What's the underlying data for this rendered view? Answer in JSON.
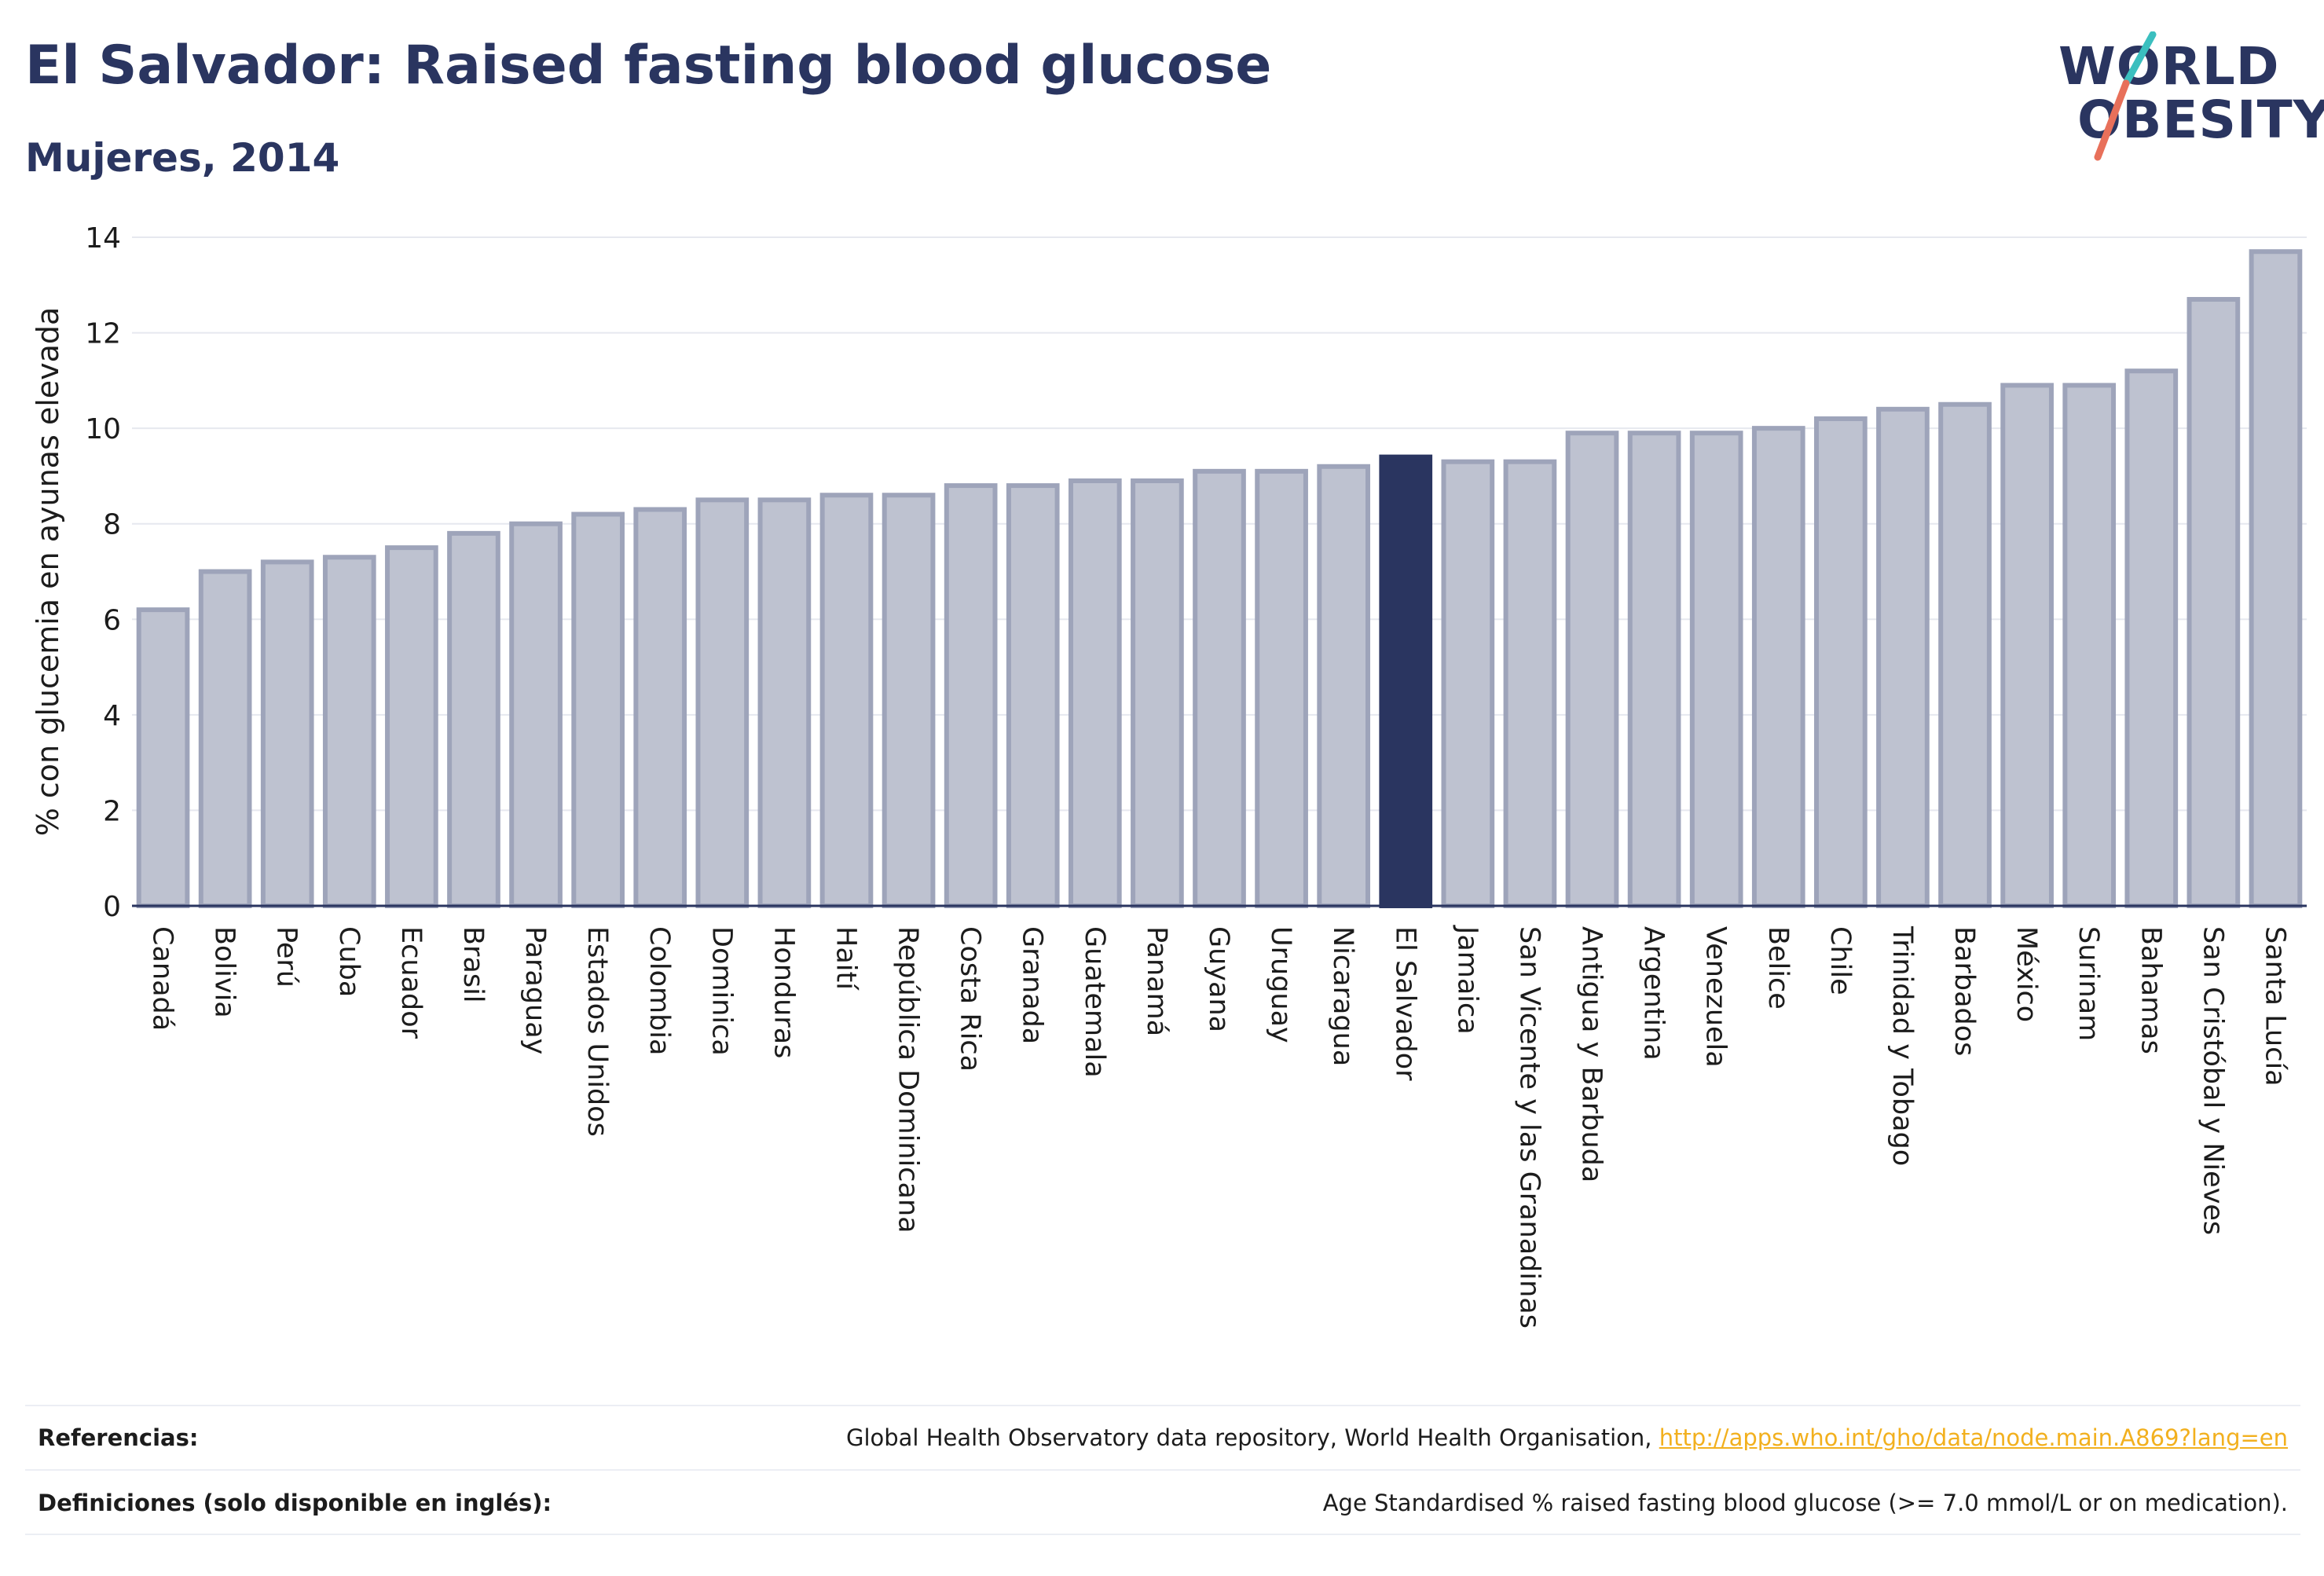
{
  "header": {
    "title": "El Salvador: Raised fasting blood glucose",
    "subtitle": "Mujeres, 2014"
  },
  "logo": {
    "line1": "WORLD",
    "line2": "OBESITY",
    "accent_colors": [
      "#3bbfbf",
      "#e8705a"
    ]
  },
  "chart_data": {
    "type": "bar",
    "ylabel": "% con glucemia en ayunas elevada",
    "ylim": [
      0,
      14
    ],
    "yticks": [
      0,
      2,
      4,
      6,
      8,
      10,
      12,
      14
    ],
    "grid": true,
    "highlight": "El Salvador",
    "colors": {
      "bar": "#bec2d0",
      "bar_edge": "#9ea4ba",
      "highlight": "#2a3560"
    },
    "categories": [
      "Canadá",
      "Bolivia",
      "Perú",
      "Cuba",
      "Ecuador",
      "Brasil",
      "Paraguay",
      "Estados Unidos",
      "Colombia",
      "Dominica",
      "Honduras",
      "Haití",
      "República Dominicana",
      "Costa Rica",
      "Granada",
      "Guatemala",
      "Panamá",
      "Guyana",
      "Uruguay",
      "Nicaragua",
      "El Salvador",
      "Jamaica",
      "San Vicente y las Granadinas",
      "Antigua y Barbuda",
      "Argentina",
      "Venezuela",
      "Belice",
      "Chile",
      "Trinidad y Tobago",
      "Barbados",
      "México",
      "Surinam",
      "Bahamas",
      "San Cristóbal y Nieves",
      "Santa Lucía"
    ],
    "values": [
      6.2,
      7.0,
      7.2,
      7.3,
      7.5,
      7.8,
      8.0,
      8.2,
      8.3,
      8.5,
      8.5,
      8.6,
      8.6,
      8.8,
      8.8,
      8.9,
      8.9,
      9.1,
      9.1,
      9.2,
      9.4,
      9.3,
      9.3,
      9.9,
      9.9,
      9.9,
      10.0,
      10.2,
      10.4,
      10.5,
      10.9,
      10.9,
      11.2,
      12.7,
      13.7
    ]
  },
  "footer": {
    "references_label": "Referencias:",
    "references_text": "Global Health Observatory data repository, World Health Organisation, ",
    "references_link": "http://apps.who.int/gho/data/node.main.A869?lang=en",
    "definitions_label": "Definiciones (solo disponible en inglés):",
    "definitions_text": "Age Standardised % raised fasting blood glucose (>= 7.0 mmol/L or on medication)."
  }
}
